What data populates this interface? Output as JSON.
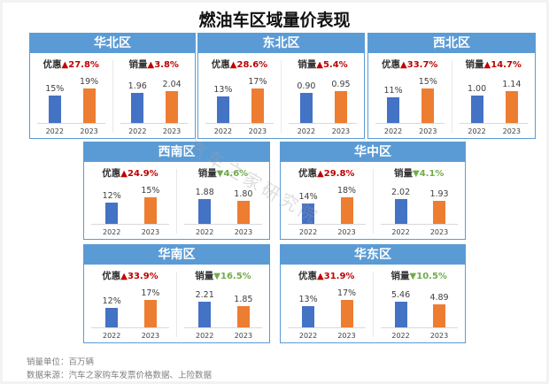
{
  "title": "燃油车区域量价表现",
  "labels": {
    "discount": "优惠",
    "sales": "销量"
  },
  "years": [
    "2022",
    "2023"
  ],
  "regions": [
    {
      "name": "华北区",
      "discount": {
        "change": "▲27.8%",
        "dir": "up",
        "v2022": "15%",
        "v2023": "19%"
      },
      "sales": {
        "change": "▲3.8%",
        "dir": "up",
        "v2022": "1.96",
        "v2023": "2.04"
      }
    },
    {
      "name": "东北区",
      "discount": {
        "change": "▲28.6%",
        "dir": "up",
        "v2022": "13%",
        "v2023": "17%"
      },
      "sales": {
        "change": "▲5.4%",
        "dir": "up",
        "v2022": "0.90",
        "v2023": "0.95"
      }
    },
    {
      "name": "西北区",
      "discount": {
        "change": "▲33.7%",
        "dir": "up",
        "v2022": "11%",
        "v2023": "15%"
      },
      "sales": {
        "change": "▲14.7%",
        "dir": "up",
        "v2022": "1.00",
        "v2023": "1.14"
      }
    },
    {
      "name": "西南区",
      "discount": {
        "change": "▲24.9%",
        "dir": "up",
        "v2022": "12%",
        "v2023": "15%"
      },
      "sales": {
        "change": "▼4.6%",
        "dir": "down",
        "v2022": "1.88",
        "v2023": "1.80"
      }
    },
    {
      "name": "华中区",
      "discount": {
        "change": "▲29.8%",
        "dir": "up",
        "v2022": "14%",
        "v2023": "18%"
      },
      "sales": {
        "change": "▼4.1%",
        "dir": "down",
        "v2022": "2.02",
        "v2023": "1.93"
      }
    },
    {
      "name": "华南区",
      "discount": {
        "change": "▲33.9%",
        "dir": "up",
        "v2022": "12%",
        "v2023": "17%"
      },
      "sales": {
        "change": "▼16.5%",
        "dir": "down",
        "v2022": "2.21",
        "v2023": "1.85"
      }
    },
    {
      "name": "华东区",
      "discount": {
        "change": "▲31.9%",
        "dir": "up",
        "v2022": "13%",
        "v2023": "17%"
      },
      "sales": {
        "change": "▼10.5%",
        "dir": "down",
        "v2022": "5.46",
        "v2023": "4.89"
      }
    }
  ],
  "footer": {
    "unit": "销量单位：百万辆",
    "source": "数据来源：汽车之家购车发票价格数据、上险数据"
  },
  "watermark": "汽车之家研究院",
  "colors": {
    "header": "#5b9bd5",
    "bar2022": "#4472c4",
    "bar2023": "#ed7d31",
    "up": "#c00000",
    "down": "#70ad47"
  },
  "chart_data": [
    {
      "type": "bar",
      "title": "华北区",
      "categories": [
        "2022",
        "2023"
      ],
      "series": [
        {
          "name": "优惠",
          "values": [
            15,
            19
          ],
          "unit": "%",
          "change": "+27.8%"
        },
        {
          "name": "销量",
          "values": [
            1.96,
            2.04
          ],
          "unit": "百万辆",
          "change": "+3.8%"
        }
      ]
    },
    {
      "type": "bar",
      "title": "东北区",
      "categories": [
        "2022",
        "2023"
      ],
      "series": [
        {
          "name": "优惠",
          "values": [
            13,
            17
          ],
          "unit": "%",
          "change": "+28.6%"
        },
        {
          "name": "销量",
          "values": [
            0.9,
            0.95
          ],
          "unit": "百万辆",
          "change": "+5.4%"
        }
      ]
    },
    {
      "type": "bar",
      "title": "西北区",
      "categories": [
        "2022",
        "2023"
      ],
      "series": [
        {
          "name": "优惠",
          "values": [
            11,
            15
          ],
          "unit": "%",
          "change": "+33.7%"
        },
        {
          "name": "销量",
          "values": [
            1.0,
            1.14
          ],
          "unit": "百万辆",
          "change": "+14.7%"
        }
      ]
    },
    {
      "type": "bar",
      "title": "西南区",
      "categories": [
        "2022",
        "2023"
      ],
      "series": [
        {
          "name": "优惠",
          "values": [
            12,
            15
          ],
          "unit": "%",
          "change": "+24.9%"
        },
        {
          "name": "销量",
          "values": [
            1.88,
            1.8
          ],
          "unit": "百万辆",
          "change": "-4.6%"
        }
      ]
    },
    {
      "type": "bar",
      "title": "华中区",
      "categories": [
        "2022",
        "2023"
      ],
      "series": [
        {
          "name": "优惠",
          "values": [
            14,
            18
          ],
          "unit": "%",
          "change": "+29.8%"
        },
        {
          "name": "销量",
          "values": [
            2.02,
            1.93
          ],
          "unit": "百万辆",
          "change": "-4.1%"
        }
      ]
    },
    {
      "type": "bar",
      "title": "华南区",
      "categories": [
        "2022",
        "2023"
      ],
      "series": [
        {
          "name": "优惠",
          "values": [
            12,
            17
          ],
          "unit": "%",
          "change": "+33.9%"
        },
        {
          "name": "销量",
          "values": [
            2.21,
            1.85
          ],
          "unit": "百万辆",
          "change": "-16.5%"
        }
      ]
    },
    {
      "type": "bar",
      "title": "华东区",
      "categories": [
        "2022",
        "2023"
      ],
      "series": [
        {
          "name": "优惠",
          "values": [
            13,
            17
          ],
          "unit": "%",
          "change": "+31.9%"
        },
        {
          "name": "销量",
          "values": [
            5.46,
            4.89
          ],
          "unit": "百万辆",
          "change": "-10.5%"
        }
      ]
    }
  ]
}
